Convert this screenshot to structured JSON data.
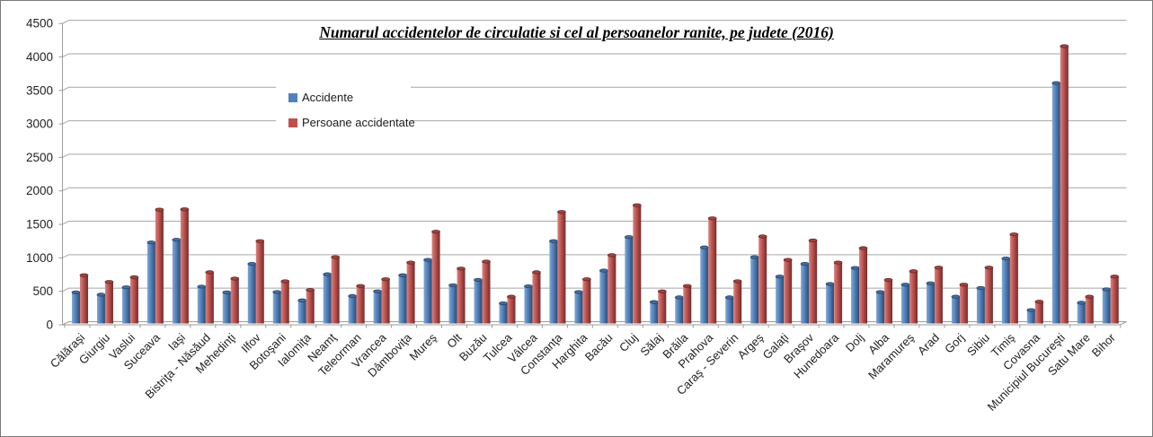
{
  "window": {
    "background": "#ffffff",
    "border_color": "#7a7a7a"
  },
  "chart_data": {
    "type": "bar",
    "title": "Numarul accidentelor de circulatie si cel al persoanelor ranite, pe judete (2016)",
    "categories": [
      "Călăraşi",
      "Giurgiu",
      "Vaslui",
      "Suceava",
      "Iaşi",
      "Bistriţa - Năsăud",
      "Mehedinţi",
      "Ilfov",
      "Botoşani",
      "Ialomiţa",
      "Neamţ",
      "Teleorman",
      "Vrancea",
      "Dâmboviţa",
      "Mureş",
      "Olt",
      "Buzău",
      "Tulcea",
      "Vâlcea",
      "Constanţa",
      "Harghita",
      "Bacău",
      "Cluj",
      "Sălaj",
      "Brăila",
      "Prahova",
      "Caraş - Severin",
      "Argeş",
      "Galaţi",
      "Braşov",
      "Hunedoara",
      "Dolj",
      "Alba",
      "Maramureş",
      "Arad",
      "Gorj",
      "Sibiu",
      "Timiş",
      "Covasna",
      "Municipiul Bucureşti",
      "Satu Mare",
      "Bihor"
    ],
    "series": [
      {
        "name": "Accidente",
        "color": "#4f81bd",
        "values": [
          465,
          430,
          540,
          1210,
          1250,
          550,
          465,
          890,
          470,
          345,
          735,
          410,
          480,
          720,
          950,
          570,
          650,
          300,
          555,
          1230,
          470,
          790,
          1290,
          320,
          390,
          1135,
          390,
          990,
          700,
          890,
          590,
          830,
          470,
          580,
          600,
          400,
          530,
          970,
          200,
          3590,
          310,
          510
        ]
      },
      {
        "name": "Persoane accidentate",
        "color": "#c0504d",
        "values": [
          720,
          620,
          690,
          1700,
          1705,
          765,
          670,
          1230,
          630,
          500,
          990,
          560,
          660,
          910,
          1370,
          820,
          925,
          400,
          765,
          1665,
          660,
          1020,
          1765,
          480,
          560,
          1570,
          630,
          1300,
          950,
          1240,
          910,
          1125,
          650,
          780,
          835,
          580,
          835,
          1330,
          325,
          4140,
          400,
          700
        ]
      }
    ],
    "ylim": [
      0,
      4500
    ],
    "yticks": [
      0,
      500,
      1000,
      1500,
      2000,
      2500,
      3000,
      3500,
      4000,
      4500
    ],
    "grid": true,
    "legend_position": "upper-left-inside",
    "grid_color": "#a6a6a6",
    "axis_color": "#9c9c9c",
    "tick_label_color": "#1f1f1f",
    "style_3d": "cylinder"
  }
}
